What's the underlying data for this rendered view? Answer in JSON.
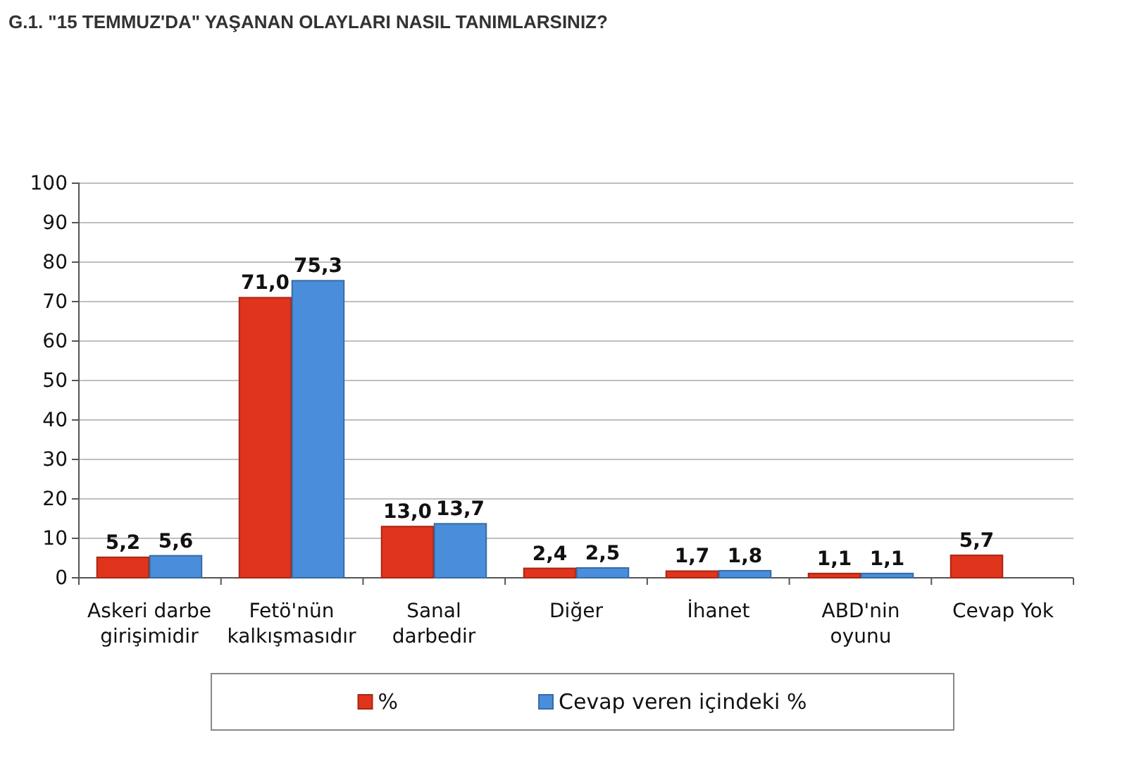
{
  "chart_data": {
    "type": "bar",
    "title": "G.1. \"15 TEMMUZ'DA\" YAŞANAN OLAYLARI NASIL TANIMLARSINIZ?",
    "categories": [
      "Askeri darbe girişimidir",
      "Fetö'nün kalkışmasıdır",
      "Sanal darbedir",
      "Diğer",
      "İhanet",
      "ABD'nin oyunu",
      "Cevap Yok"
    ],
    "series": [
      {
        "name": "%",
        "color": "#e0341c",
        "values": [
          5.2,
          71.0,
          13.0,
          2.4,
          1.7,
          1.1,
          5.7
        ],
        "value_labels": [
          "5,2",
          "71,0",
          "13,0",
          "2,4",
          "1,7",
          "1,1",
          "5,7"
        ]
      },
      {
        "name": "Cevap veren içindeki %",
        "color": "#4a8edb",
        "values": [
          5.6,
          75.3,
          13.7,
          2.5,
          1.8,
          1.1,
          null
        ],
        "value_labels": [
          "5,6",
          "75,3",
          "13,7",
          "2,5",
          "1,8",
          "1,1",
          null
        ]
      }
    ],
    "ylim": [
      0,
      100
    ],
    "yticks": [
      0,
      10,
      20,
      30,
      40,
      50,
      60,
      70,
      80,
      90,
      100
    ],
    "grid": "y",
    "legend": "bottom"
  }
}
